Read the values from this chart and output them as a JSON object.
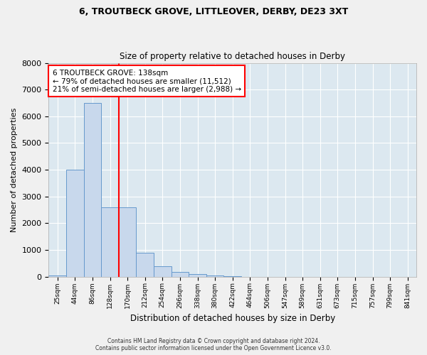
{
  "title1": "6, TROUTBECK GROVE, LITTLEOVER, DERBY, DE23 3XT",
  "title2": "Size of property relative to detached houses in Derby",
  "xlabel": "Distribution of detached houses by size in Derby",
  "ylabel": "Number of detached properties",
  "bar_color": "#c8d8ec",
  "bar_edge_color": "#6699cc",
  "bin_labels": [
    "25sqm",
    "44sqm",
    "86sqm",
    "128sqm",
    "170sqm",
    "212sqm",
    "254sqm",
    "296sqm",
    "338sqm",
    "380sqm",
    "422sqm",
    "464sqm",
    "506sqm",
    "547sqm",
    "589sqm",
    "631sqm",
    "673sqm",
    "715sqm",
    "757sqm",
    "799sqm",
    "841sqm"
  ],
  "bar_heights": [
    50,
    4000,
    6500,
    2600,
    2600,
    900,
    380,
    180,
    100,
    55,
    10,
    0,
    0,
    0,
    0,
    0,
    0,
    0,
    0,
    0,
    0
  ],
  "property_bin_index": 3,
  "property_label": "6 TROUTBECK GROVE: 138sqm",
  "annotation_line1": "← 79% of detached houses are smaller (11,512)",
  "annotation_line2": "21% of semi-detached houses are larger (2,988) →",
  "annotation_box_color": "white",
  "annotation_box_edge_color": "red",
  "vline_color": "red",
  "ylim": [
    0,
    8000
  ],
  "yticks": [
    0,
    1000,
    2000,
    3000,
    4000,
    5000,
    6000,
    7000,
    8000
  ],
  "plot_bg_color": "#dce8f0",
  "fig_bg_color": "#f0f0f0",
  "footer_line1": "Contains HM Land Registry data © Crown copyright and database right 2024.",
  "footer_line2": "Contains public sector information licensed under the Open Government Licence v3.0."
}
